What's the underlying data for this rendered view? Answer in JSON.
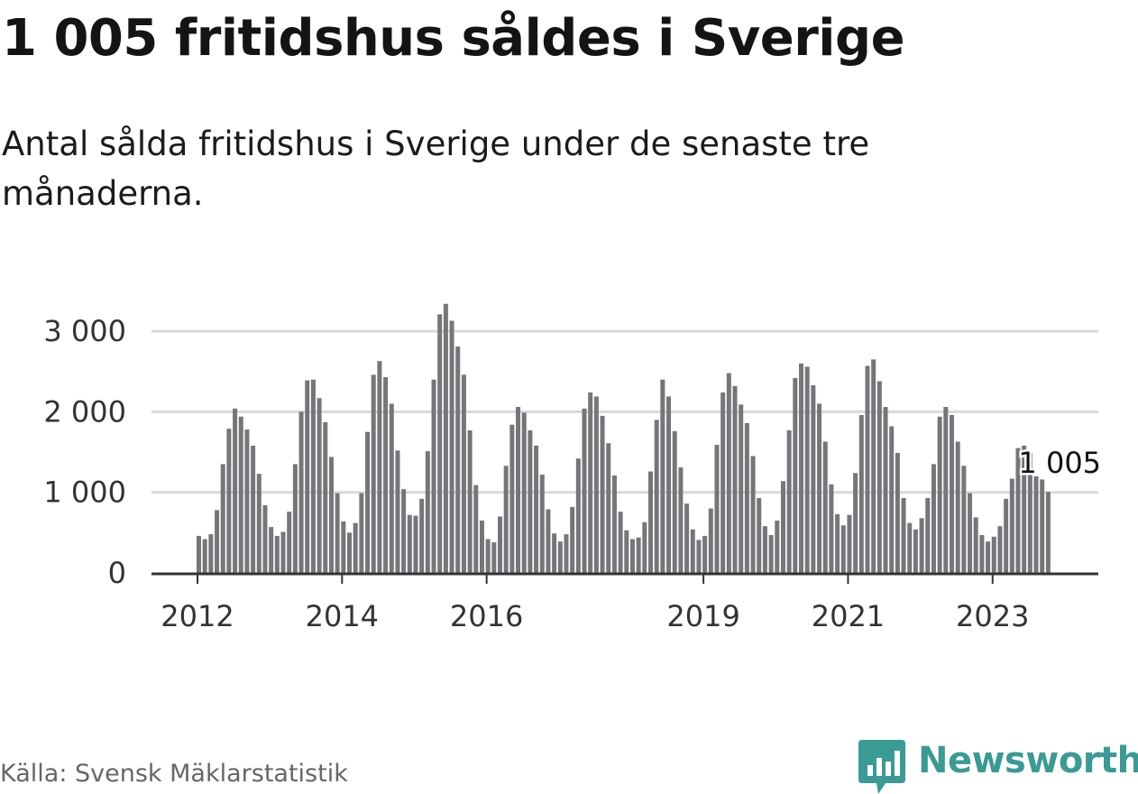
{
  "header": {
    "title": "1 005 fritidshus såldes i Sverige",
    "subtitle": "Antal sålda fritidshus i Sverige under de senaste tre månaderna."
  },
  "footer": {
    "source": "Källa: Svensk Mäklarstatistik",
    "brand": "Newsworthy",
    "brand_icon": "bar-chart-pin-icon"
  },
  "colors": {
    "bar": "#76757a",
    "highlight": "#2aa39b",
    "grid": "#d9d9d9",
    "axis": "#333333",
    "brand": "#3a9a94"
  },
  "chart_data": {
    "type": "bar",
    "title": "1 005 fritidshus såldes i Sverige",
    "subtitle": "Antal sålda fritidshus i Sverige under de senaste tre månaderna.",
    "xlabel": "",
    "ylabel": "",
    "ylim": [
      0,
      3300
    ],
    "y_ticks": [
      0,
      1000,
      2000,
      3000
    ],
    "y_tick_labels": [
      "0",
      "1 000",
      "2 000",
      "3 000"
    ],
    "x_tick_labels": [
      {
        "label": "2012",
        "index": 0
      },
      {
        "label": "2014",
        "index": 24
      },
      {
        "label": "2016",
        "index": 48
      },
      {
        "label": "2019",
        "index": 84
      },
      {
        "label": "2021",
        "index": 108
      },
      {
        "label": "2023",
        "index": 132
      }
    ],
    "grid": true,
    "series": [
      {
        "values": [
          460,
          420,
          480,
          780,
          1350,
          1790,
          2040,
          1940,
          1780,
          1580,
          1230,
          840,
          570,
          460,
          510,
          760,
          1350,
          2000,
          2390,
          2400,
          2170,
          1870,
          1440,
          990,
          640,
          500,
          620,
          990,
          1750,
          2460,
          2630,
          2430,
          2100,
          1520,
          1040,
          720,
          710,
          920,
          1510,
          2400,
          3210,
          3340,
          3130,
          2810,
          2460,
          1770,
          1090,
          650,
          420,
          380,
          700,
          1330,
          1840,
          2060,
          1990,
          1770,
          1580,
          1220,
          790,
          490,
          390,
          480,
          820,
          1420,
          2040,
          2240,
          2190,
          1950,
          1610,
          1210,
          760,
          530,
          420,
          440,
          630,
          1260,
          1900,
          2400,
          2190,
          1760,
          1310,
          860,
          540,
          410,
          460,
          800,
          1590,
          2240,
          2480,
          2320,
          2090,
          1860,
          1450,
          930,
          580,
          470,
          650,
          1140,
          1770,
          2420,
          2600,
          2560,
          2330,
          2100,
          1630,
          1100,
          730,
          590,
          720,
          1240,
          1960,
          2570,
          2650,
          2380,
          2060,
          1820,
          1490,
          930,
          620,
          540,
          680,
          930,
          1350,
          1940,
          2060,
          1960,
          1630,
          1330,
          990,
          690,
          470,
          390,
          450,
          580,
          920,
          1170,
          1550,
          1580,
          1490,
          1200,
          1160,
          1005
        ]
      }
    ],
    "highlight": {
      "index": 143,
      "value": 1005,
      "label": "1 005"
    }
  }
}
